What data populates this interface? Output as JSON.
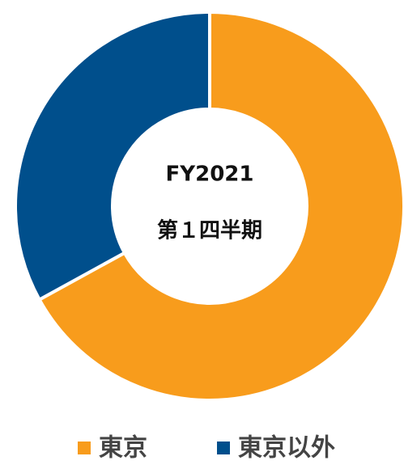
{
  "chart_data": {
    "type": "donut",
    "center_labels": [
      "FY2021",
      "第１四半期"
    ],
    "categories": [
      "東京",
      "東京以外"
    ],
    "values": [
      67,
      33
    ],
    "colors": [
      "#f89c1c",
      "#004f8c"
    ],
    "legend": "bottom"
  }
}
